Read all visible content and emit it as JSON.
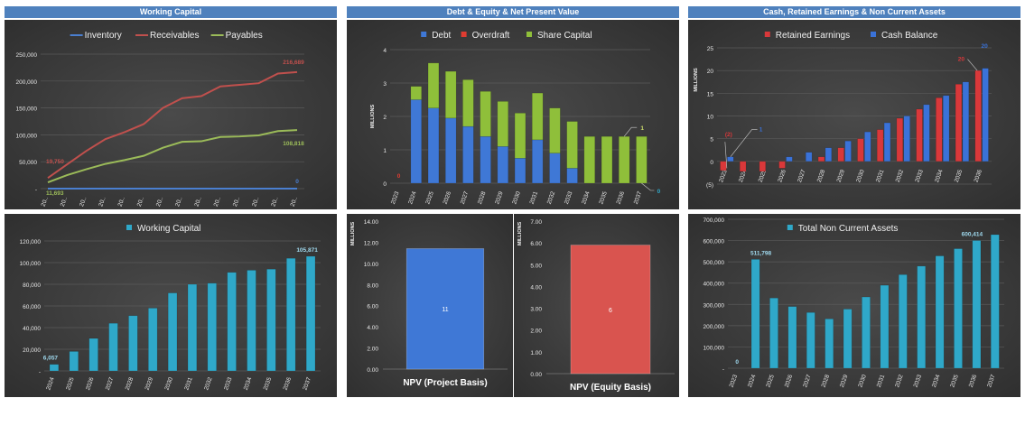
{
  "headers": {
    "wc": "Working Capital",
    "de": "Debt & Equity & Net Present Value",
    "cash": "Cash, Retained Earnings & Non Current Assets"
  },
  "colors": {
    "header": "#4f81bd",
    "inventory": "#4a7fd0",
    "receivables": "#c0504d",
    "payables": "#9bbb59",
    "debt": "#3f78d6",
    "overdraft": "#e03c31",
    "share": "#8fbf3a",
    "teal": "#2fa8c9",
    "retained": "#d9383a",
    "cashbal": "#3a72d8",
    "npv_project": "#3f78d6",
    "npv_equity": "#d9544f"
  },
  "chart_data": [
    {
      "id": "working-capital-lines",
      "type": "line",
      "categories": [
        "20..",
        "20..",
        "20..",
        "20..",
        "20..",
        "20..",
        "20..",
        "20..",
        "20..",
        "20..",
        "20..",
        "20..",
        "20..",
        "20.."
      ],
      "series": [
        {
          "name": "Inventory",
          "values": [
            0,
            0,
            0,
            0,
            0,
            0,
            0,
            0,
            0,
            0,
            0,
            0,
            0,
            0
          ]
        },
        {
          "name": "Receivables",
          "values": [
            19750,
            45000,
            70000,
            92000,
            105000,
            120000,
            150000,
            168000,
            172000,
            190000,
            193000,
            196000,
            214000,
            216689
          ]
        },
        {
          "name": "Payables",
          "values": [
            11693,
            25000,
            36000,
            46000,
            53000,
            61000,
            76000,
            87000,
            88000,
            96000,
            97000,
            99000,
            107000,
            108818
          ]
        }
      ],
      "data_labels": [
        "0",
        "19,750",
        "216,689",
        "11,693",
        "108,818"
      ],
      "ylim": [
        0,
        250000
      ],
      "yticks": [
        "-",
        "50,000",
        "100,000",
        "150,000",
        "200,000",
        "250,000"
      ],
      "legend": "top"
    },
    {
      "id": "debt-equity-stacked",
      "type": "bar",
      "stacked": true,
      "ylabel": "MILLIONS",
      "categories": [
        "2023",
        "2024",
        "2025",
        "2026",
        "2027",
        "2028",
        "2029",
        "2030",
        "2031",
        "2032",
        "2033",
        "2034",
        "2035",
        "2036",
        "2037"
      ],
      "series": [
        {
          "name": "Debt",
          "values": [
            0,
            2.5,
            2.25,
            1.95,
            1.7,
            1.4,
            1.1,
            0.75,
            1.3,
            0.9,
            0.45,
            0,
            0,
            0,
            0
          ]
        },
        {
          "name": "Overdraft",
          "values": [
            0,
            0,
            0,
            0,
            0,
            0,
            0,
            0,
            0,
            0,
            0,
            0,
            0,
            0,
            0
          ]
        },
        {
          "name": "Share Capital",
          "values": [
            0,
            0.4,
            1.35,
            1.4,
            1.4,
            1.35,
            1.35,
            1.35,
            1.4,
            1.35,
            1.4,
            1.4,
            1.4,
            1.4,
            1.4
          ]
        }
      ],
      "data_labels": [
        "0",
        "1",
        "0"
      ],
      "ylim": [
        0,
        4
      ],
      "yticks": [
        "0",
        "1",
        "2",
        "3",
        "4"
      ],
      "legend": "top"
    },
    {
      "id": "cash-retained",
      "type": "bar",
      "ylabel": "MILLIONS",
      "categories": [
        "2023",
        "2024",
        "2025",
        "2026",
        "2027",
        "2028",
        "2029",
        "2030",
        "2031",
        "2032",
        "2033",
        "2034",
        "2035",
        "2036"
      ],
      "series": [
        {
          "name": "Retained Earnings",
          "values": [
            -2,
            -2.2,
            -2.2,
            -1.5,
            0,
            1,
            3,
            5,
            7,
            9.5,
            11.5,
            14,
            17,
            20
          ]
        },
        {
          "name": "Cash Balance",
          "values": [
            1,
            0,
            0,
            1,
            2,
            3,
            4.5,
            6.5,
            8.5,
            10,
            12.5,
            14.5,
            17.5,
            20.5
          ]
        }
      ],
      "data_labels": [
        "(2)",
        "1",
        "20",
        "20"
      ],
      "ylim": [
        -5,
        25
      ],
      "yticks": [
        "(5)",
        "0",
        "5",
        "10",
        "15",
        "20",
        "25"
      ],
      "legend": "top"
    },
    {
      "id": "working-capital-bars",
      "type": "bar",
      "categories": [
        "2024",
        "2025",
        "2026",
        "2027",
        "2028",
        "2029",
        "2030",
        "2031",
        "2032",
        "2033",
        "2034",
        "2035",
        "2036",
        "2037"
      ],
      "series": [
        {
          "name": "Working Capital",
          "values": [
            6057,
            18000,
            30000,
            44000,
            51000,
            58000,
            72000,
            80000,
            81000,
            91000,
            93000,
            94000,
            104000,
            105871
          ]
        }
      ],
      "data_labels": [
        "6,057",
        "105,871"
      ],
      "ylim": [
        0,
        120000
      ],
      "yticks": [
        "-",
        "20,000",
        "40,000",
        "60,000",
        "80,000",
        "100,000",
        "120,000"
      ],
      "legend": "top"
    },
    {
      "id": "npv-project",
      "type": "bar",
      "ylabel": "MILLIONS",
      "categories": [
        "NPV (Project Basis)"
      ],
      "values": [
        11.4
      ],
      "data_labels": [
        "11"
      ],
      "ylim": [
        0,
        14
      ],
      "yticks": [
        "0.00",
        "2.00",
        "4.00",
        "6.00",
        "8.00",
        "10.00",
        "12.00",
        "14.00"
      ]
    },
    {
      "id": "npv-equity",
      "type": "bar",
      "ylabel": "MILLIONS",
      "categories": [
        "NPV (Equity Basis)"
      ],
      "values": [
        5.9
      ],
      "data_labels": [
        "6"
      ],
      "ylim": [
        0,
        7
      ],
      "yticks": [
        "0.00",
        "1.00",
        "2.00",
        "3.00",
        "4.00",
        "5.00",
        "6.00",
        "7.00"
      ]
    },
    {
      "id": "non-current-assets",
      "type": "bar",
      "categories": [
        "2023",
        "2024",
        "2025",
        "2026",
        "2027",
        "2028",
        "2029",
        "2030",
        "2031",
        "2032",
        "2033",
        "2034",
        "2035",
        "2036",
        "2037"
      ],
      "series": [
        {
          "name": "Total Non Current Assets",
          "values": [
            0,
            511798,
            330000,
            290000,
            262000,
            232000,
            278000,
            335000,
            390000,
            440000,
            480000,
            528000,
            562000,
            600414,
            628000
          ]
        }
      ],
      "data_labels": [
        "0",
        "511,798",
        "600,414"
      ],
      "ylim": [
        0,
        700000
      ],
      "yticks": [
        "-",
        "100,000",
        "200,000",
        "300,000",
        "400,000",
        "500,000",
        "600,000",
        "700,000"
      ],
      "legend": "top"
    }
  ]
}
